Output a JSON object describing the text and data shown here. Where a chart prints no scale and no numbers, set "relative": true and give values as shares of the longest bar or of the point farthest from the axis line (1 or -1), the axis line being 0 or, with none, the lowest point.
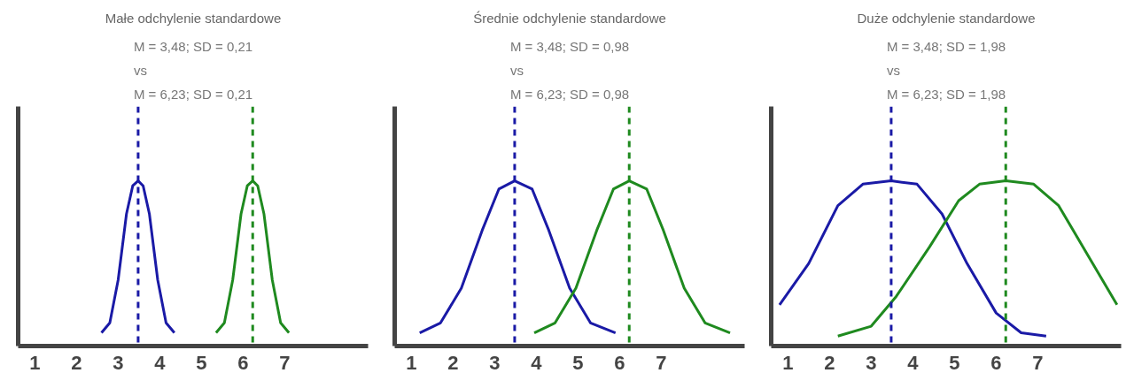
{
  "chart_data": [
    {
      "type": "line",
      "title": "Małe odchylenie standardowe",
      "subtitle": "M = 3,48; SD = 0,21\nvs\nM = 6,23; SD = 0,21",
      "relative": true,
      "tick_labels": "x",
      "grid": false,
      "line_style": "solid",
      "xlim": [
        0.6,
        9
      ],
      "xticks": [
        1,
        2,
        3,
        4,
        5,
        6,
        7
      ],
      "series": [
        {
          "color": "#1a1aa6",
          "x": [
            2.6,
            2.8,
            3.0,
            3.2,
            3.35,
            3.48,
            3.6,
            3.75,
            3.95,
            4.15,
            4.35
          ],
          "values": [
            0.08,
            0.14,
            0.4,
            0.8,
            0.97,
            1,
            0.97,
            0.8,
            0.4,
            0.14,
            0.08
          ]
        },
        {
          "color": "#1f8a1f",
          "x": [
            5.35,
            5.55,
            5.75,
            5.95,
            6.1,
            6.23,
            6.35,
            6.5,
            6.7,
            6.9,
            7.1
          ],
          "values": [
            0.08,
            0.14,
            0.4,
            0.8,
            0.97,
            1,
            0.97,
            0.8,
            0.4,
            0.14,
            0.08
          ]
        }
      ],
      "ref_lines": [
        {
          "axis": "x",
          "value": 3.48,
          "color": "#1a1aa6",
          "line_style": "dashed"
        },
        {
          "axis": "x",
          "value": 6.23,
          "color": "#1f8a1f",
          "line_style": "dashed"
        }
      ]
    },
    {
      "type": "line",
      "title": "Średnie odchylenie standardowe",
      "subtitle": "M = 3,48; SD = 0,98\nvs\nM = 6,23; SD = 0,98",
      "relative": true,
      "tick_labels": "x",
      "grid": false,
      "line_style": "solid",
      "xlim": [
        0.6,
        9
      ],
      "xticks": [
        1,
        2,
        3,
        4,
        5,
        6,
        7
      ],
      "series": [
        {
          "color": "#1a1aa6",
          "x": [
            1.2,
            1.7,
            2.2,
            2.7,
            3.1,
            3.48,
            3.9,
            4.3,
            4.8,
            5.3,
            5.9
          ],
          "values": [
            0.08,
            0.14,
            0.35,
            0.7,
            0.95,
            1,
            0.95,
            0.7,
            0.35,
            0.14,
            0.08
          ]
        },
        {
          "color": "#1f8a1f",
          "x": [
            3.95,
            4.45,
            4.95,
            5.45,
            5.85,
            6.23,
            6.65,
            7.05,
            7.55,
            8.05,
            8.65
          ],
          "values": [
            0.08,
            0.14,
            0.35,
            0.7,
            0.95,
            1,
            0.95,
            0.7,
            0.35,
            0.14,
            0.08
          ]
        }
      ],
      "ref_lines": [
        {
          "axis": "x",
          "value": 3.48,
          "color": "#1a1aa6",
          "line_style": "dashed"
        },
        {
          "axis": "x",
          "value": 6.23,
          "color": "#1f8a1f",
          "line_style": "dashed"
        }
      ]
    },
    {
      "type": "line",
      "title": "Duże odchylenie standardowe",
      "subtitle": "M = 3,48; SD = 1,98\nvs\nM = 6,23; SD = 1,98",
      "relative": true,
      "tick_labels": "x",
      "grid": false,
      "line_style": "solid",
      "xlim": [
        0.6,
        9
      ],
      "xticks": [
        1,
        2,
        3,
        4,
        5,
        6,
        7
      ],
      "series": [
        {
          "color": "#1a1aa6",
          "x": [
            0.8,
            1.5,
            2.2,
            2.8,
            3.48,
            4.1,
            4.7,
            5.3,
            6.0,
            6.6,
            7.2
          ],
          "values": [
            0.25,
            0.5,
            0.85,
            0.98,
            1,
            0.98,
            0.8,
            0.5,
            0.2,
            0.08,
            0.06
          ]
        },
        {
          "color": "#1f8a1f",
          "x": [
            2.2,
            3.0,
            3.6,
            4.4,
            5.1,
            5.6,
            6.23,
            6.9,
            7.5,
            8.2,
            8.9
          ],
          "values": [
            0.06,
            0.12,
            0.3,
            0.6,
            0.88,
            0.98,
            1,
            0.98,
            0.85,
            0.55,
            0.25
          ]
        }
      ],
      "ref_lines": [
        {
          "axis": "x",
          "value": 3.48,
          "color": "#1a1aa6",
          "line_style": "dashed"
        },
        {
          "axis": "x",
          "value": 6.23,
          "color": "#1f8a1f",
          "line_style": "dashed"
        }
      ]
    }
  ]
}
